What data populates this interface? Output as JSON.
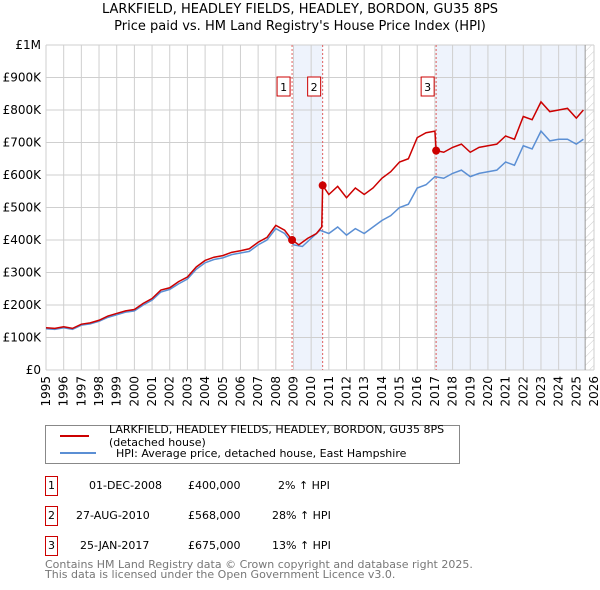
{
  "chart_data": {
    "type": "line",
    "title": "LARKFIELD, HEADLEY FIELDS, HEADLEY, BORDON, GU35 8PS",
    "subtitle": "Price paid vs. HM Land Registry's House Price Index (HPI)",
    "xlim": [
      1995,
      2026
    ],
    "ylim": [
      0,
      1000000
    ],
    "x_ticks": [
      "1995",
      "1996",
      "1997",
      "1998",
      "1999",
      "2000",
      "2001",
      "2002",
      "2003",
      "2004",
      "2005",
      "2006",
      "2007",
      "2008",
      "2009",
      "2010",
      "2011",
      "2012",
      "2013",
      "2014",
      "2015",
      "2016",
      "2017",
      "2018",
      "2019",
      "2020",
      "2021",
      "2022",
      "2023",
      "2024",
      "2025",
      "2026"
    ],
    "y_ticks": [
      {
        "v": 0,
        "label": "£0"
      },
      {
        "v": 100000,
        "label": "£100K"
      },
      {
        "v": 200000,
        "label": "£200K"
      },
      {
        "v": 300000,
        "label": "£300K"
      },
      {
        "v": 400000,
        "label": "£400K"
      },
      {
        "v": 500000,
        "label": "£500K"
      },
      {
        "v": 600000,
        "label": "£600K"
      },
      {
        "v": 700000,
        "label": "£700K"
      },
      {
        "v": 800000,
        "label": "£800K"
      },
      {
        "v": 900000,
        "label": "£900K"
      },
      {
        "v": 1000000,
        "label": "£1M"
      }
    ],
    "grid": true,
    "series": [
      {
        "name": "LARKFIELD, HEADLEY FIELDS, HEADLEY, BORDON, GU35 8PS (detached house)",
        "color": "#cc0000",
        "x": [
          1995,
          1995.5,
          1996,
          1996.5,
          1997,
          1997.5,
          1998,
          1998.5,
          1999,
          1999.5,
          2000,
          2000.5,
          2001,
          2001.5,
          2002,
          2002.5,
          2003,
          2003.5,
          2004,
          2004.5,
          2005,
          2005.5,
          2006,
          2006.5,
          2007,
          2007.5,
          2008,
          2008.5,
          2008.92,
          2009.3,
          2009.8,
          2010.3,
          2010.6,
          2010.65,
          2011,
          2011.5,
          2012,
          2012.5,
          2013,
          2013.5,
          2014,
          2014.5,
          2015,
          2015.5,
          2016,
          2016.5,
          2017.0,
          2017.07,
          2017.5,
          2018,
          2018.5,
          2019,
          2019.5,
          2020,
          2020.5,
          2021,
          2021.5,
          2022,
          2022.5,
          2023,
          2023.5,
          2024,
          2024.5,
          2025,
          2025.4
        ],
        "y": [
          130000,
          128000,
          133000,
          128000,
          141000,
          145000,
          153000,
          166000,
          174000,
          182000,
          186000,
          205000,
          220000,
          246000,
          253000,
          272000,
          286000,
          317000,
          337000,
          347000,
          352000,
          362000,
          367000,
          373000,
          393000,
          408000,
          445000,
          430000,
          400000,
          385000,
          405000,
          420000,
          440000,
          568000,
          540000,
          565000,
          530000,
          560000,
          540000,
          560000,
          590000,
          610000,
          640000,
          650000,
          715000,
          730000,
          735000,
          675000,
          670000,
          685000,
          695000,
          670000,
          685000,
          690000,
          695000,
          720000,
          710000,
          780000,
          770000,
          825000,
          795000,
          800000,
          805000,
          775000,
          800000
        ]
      },
      {
        "name": "HPI: Average price, detached house, East Hampshire",
        "color": "#5b8fd4",
        "x": [
          1995,
          1995.5,
          1996,
          1996.5,
          1997,
          1997.5,
          1998,
          1998.5,
          1999,
          1999.5,
          2000,
          2000.5,
          2001,
          2001.5,
          2002,
          2002.5,
          2003,
          2003.5,
          2004,
          2004.5,
          2005,
          2005.5,
          2006,
          2006.5,
          2007,
          2007.5,
          2008,
          2008.5,
          2009,
          2009.5,
          2010,
          2010.5,
          2011,
          2011.5,
          2012,
          2012.5,
          2013,
          2013.5,
          2014,
          2014.5,
          2015,
          2015.5,
          2016,
          2016.5,
          2017,
          2017.5,
          2018,
          2018.5,
          2019,
          2019.5,
          2020,
          2020.5,
          2021,
          2021.5,
          2022,
          2022.5,
          2023,
          2023.5,
          2024,
          2024.5,
          2025,
          2025.4
        ],
        "y": [
          127000,
          125000,
          130000,
          125000,
          138000,
          142000,
          150000,
          162000,
          170000,
          178000,
          182000,
          200000,
          215000,
          240000,
          248000,
          265000,
          280000,
          310000,
          330000,
          340000,
          345000,
          355000,
          360000,
          365000,
          385000,
          400000,
          435000,
          420000,
          385000,
          380000,
          405000,
          430000,
          420000,
          440000,
          415000,
          435000,
          420000,
          440000,
          460000,
          475000,
          500000,
          510000,
          560000,
          570000,
          595000,
          590000,
          605000,
          615000,
          595000,
          605000,
          610000,
          615000,
          640000,
          630000,
          690000,
          680000,
          735000,
          705000,
          710000,
          710000,
          695000,
          710000
        ]
      }
    ],
    "sales": [
      {
        "n": "1",
        "x": 2008.92,
        "y": 400000,
        "date": "01-DEC-2008",
        "price": "£400,000",
        "hpi": "2% ↑ HPI"
      },
      {
        "n": "2",
        "x": 2010.65,
        "y": 568000,
        "date": "27-AUG-2010",
        "price": "£568,000",
        "hpi": "28% ↑ HPI"
      },
      {
        "n": "3",
        "x": 2017.07,
        "y": 675000,
        "date": "25-JAN-2017",
        "price": "£675,000",
        "hpi": "13% ↑ HPI"
      }
    ],
    "shaded_ranges": [
      [
        2009,
        2010.65
      ],
      [
        2017.07,
        2025.5
      ]
    ],
    "forecast_from": 2025.5
  },
  "footer": {
    "line1": "Contains HM Land Registry data © Crown copyright and database right 2025.",
    "line2": "This data is licensed under the Open Government Licence v3.0."
  }
}
